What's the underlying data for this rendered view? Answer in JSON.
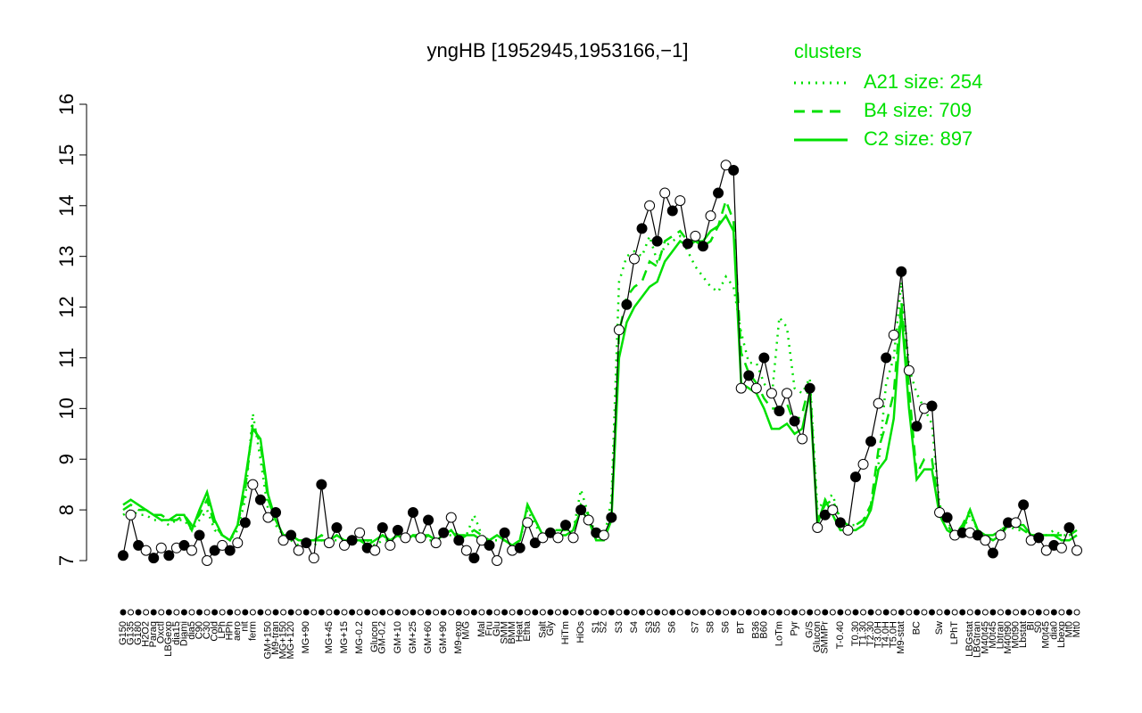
{
  "chart_data": {
    "type": "line",
    "title": "yngHB [1952945,1953166,−1]",
    "legend_title": "clusters",
    "ylim": [
      7,
      16
    ],
    "yticks": [
      7,
      8,
      9,
      10,
      11,
      12,
      13,
      14,
      15,
      16
    ],
    "color": "#000000",
    "categories": [
      "G150",
      "G135",
      "G180",
      "H2O2",
      "Paraq",
      "Oxctl",
      "LBGexp",
      "dia15",
      "Diami",
      "dia5",
      "C90",
      "C30",
      "Cold",
      "LPh",
      "HPh",
      "aero",
      "nit",
      "ferm",
      null,
      "GM+150",
      "M9-tran",
      "MG+150",
      "MG+120",
      null,
      "MG+90",
      null,
      null,
      "MG+45",
      null,
      "MG+15",
      null,
      "MG-0.2",
      null,
      "Glucon",
      "GM-0.2",
      null,
      "GM+10",
      null,
      "GM+25",
      null,
      "GM+60",
      null,
      "GM+90",
      null,
      "M9-exp",
      "M/G",
      null,
      "Mal",
      "Fru",
      "Glu",
      "SMM",
      "BMM",
      "Heat",
      "Etha",
      null,
      "Salt",
      "Gly",
      null,
      "HiTm",
      null,
      "HiOs",
      null,
      "S1",
      "S2",
      null,
      "S3",
      null,
      "S4",
      null,
      "S3",
      "S5",
      null,
      "S6",
      null,
      null,
      "S7",
      null,
      "S8",
      null,
      "S6",
      null,
      "BT",
      null,
      "B36",
      "B60",
      null,
      "LoTm",
      null,
      "Pyr",
      null,
      "G/S",
      "Glucon",
      "SMMPr",
      null,
      "T-0.40",
      null,
      "T0.30",
      "T1.30",
      "T2.30",
      "T3.0H",
      "T4.0H",
      "T5.0H",
      "M9-stat",
      null,
      "BC",
      null,
      null,
      "Sw",
      null,
      "LPhT",
      null,
      "LBGstat",
      "LBGtran",
      "M40t45",
      "M0t45",
      "Lbtran",
      "M40t90",
      "M0t90",
      "Lbstat",
      "BI",
      "S0",
      "M0t45",
      "dia0",
      "Lbexp",
      "Mt0",
      "Mt0"
    ],
    "values": [
      7.1,
      7.9,
      7.3,
      7.2,
      7.05,
      7.25,
      7.1,
      7.25,
      7.3,
      7.2,
      7.5,
      7.0,
      7.2,
      7.3,
      7.2,
      7.35,
      7.75,
      8.5,
      8.2,
      7.85,
      7.95,
      7.4,
      7.5,
      7.2,
      7.35,
      7.05,
      8.5,
      7.35,
      7.65,
      7.3,
      7.4,
      7.55,
      7.25,
      7.2,
      7.65,
      7.3,
      7.6,
      7.45,
      7.95,
      7.45,
      7.8,
      7.35,
      7.55,
      7.85,
      7.4,
      7.2,
      7.05,
      7.4,
      7.3,
      7.0,
      7.55,
      7.2,
      7.25,
      7.75,
      7.35,
      7.45,
      7.55,
      7.45,
      7.7,
      7.45,
      8.0,
      7.8,
      7.55,
      7.5,
      7.85,
      11.55,
      12.05,
      12.95,
      13.55,
      14.0,
      13.3,
      14.25,
      13.9,
      14.1,
      13.25,
      13.4,
      13.2,
      13.8,
      14.25,
      14.8,
      14.7,
      10.4,
      10.65,
      10.4,
      11.0,
      10.3,
      9.95,
      10.3,
      9.75,
      9.4,
      10.4,
      7.65,
      7.9,
      8.0,
      7.75,
      7.6,
      8.65,
      8.9,
      9.35,
      10.1,
      11.0,
      11.45,
      12.7,
      10.75,
      9.65,
      10.0,
      10.05,
      7.95,
      7.85,
      7.5,
      7.55,
      7.55,
      7.5,
      7.4,
      7.15,
      7.5,
      7.75,
      7.75,
      8.1,
      7.4,
      7.45,
      7.2,
      7.3,
      7.25,
      7.65,
      7.2
    ],
    "series": [
      {
        "name": "A21 size: 254",
        "color": "#00e000",
        "style": "dotted",
        "values": [
          7.9,
          8.0,
          7.9,
          7.9,
          7.8,
          7.8,
          7.7,
          7.8,
          7.8,
          7.6,
          7.8,
          8.0,
          7.6,
          7.5,
          7.4,
          7.6,
          8.2,
          9.9,
          9.0,
          8.0,
          7.7,
          7.5,
          7.4,
          7.3,
          7.4,
          7.3,
          7.4,
          7.4,
          7.4,
          7.4,
          7.3,
          7.4,
          7.4,
          7.3,
          7.4,
          7.4,
          7.5,
          7.4,
          7.5,
          7.4,
          7.4,
          7.4,
          7.5,
          7.5,
          7.4,
          7.5,
          7.9,
          7.5,
          7.4,
          7.4,
          7.4,
          7.3,
          7.4,
          8.0,
          7.7,
          7.5,
          7.6,
          7.6,
          7.6,
          7.6,
          8.4,
          7.9,
          7.5,
          7.4,
          8.2,
          12.5,
          13.0,
          13.1,
          13.0,
          13.4,
          12.9,
          13.2,
          13.3,
          13.4,
          13.1,
          12.8,
          12.6,
          12.4,
          12.3,
          12.6,
          12.4,
          11.5,
          10.9,
          10.9,
          10.5,
          10.2,
          11.8,
          11.6,
          10.4,
          10.3,
          10.6,
          8.0,
          8.2,
          8.3,
          7.8,
          7.7,
          7.7,
          7.8,
          8.0,
          8.9,
          10.5,
          11.0,
          12.5,
          10.8,
          10.3,
          10.0,
          9.7,
          8.1,
          7.8,
          7.5,
          7.6,
          7.9,
          7.6,
          7.5,
          7.4,
          7.6,
          7.7,
          7.6,
          7.6,
          7.5,
          7.5,
          7.5,
          7.6,
          7.5,
          7.5,
          7.5
        ]
      },
      {
        "name": "B4 size: 709",
        "color": "#00e000",
        "style": "dashed",
        "values": [
          8.0,
          8.1,
          8.0,
          8.0,
          7.9,
          7.9,
          7.8,
          7.8,
          7.9,
          7.7,
          7.9,
          8.2,
          7.7,
          7.5,
          7.4,
          7.7,
          8.4,
          9.7,
          9.3,
          8.2,
          7.8,
          7.5,
          7.5,
          7.4,
          7.4,
          7.4,
          7.5,
          7.4,
          7.5,
          7.4,
          7.4,
          7.4,
          7.4,
          7.4,
          7.5,
          7.4,
          7.5,
          7.4,
          7.5,
          7.5,
          7.5,
          7.4,
          7.5,
          7.6,
          7.5,
          7.5,
          7.6,
          7.5,
          7.4,
          7.5,
          7.4,
          7.3,
          7.4,
          8.1,
          7.8,
          7.5,
          7.6,
          7.6,
          7.6,
          7.6,
          8.1,
          7.9,
          7.5,
          7.4,
          7.9,
          11.5,
          12.2,
          12.4,
          12.5,
          12.9,
          12.8,
          13.3,
          13.4,
          13.5,
          13.3,
          13.3,
          13.2,
          13.3,
          13.6,
          14.1,
          13.7,
          11.1,
          10.7,
          10.5,
          10.2,
          10.0,
          10.0,
          10.1,
          9.7,
          9.9,
          10.5,
          7.8,
          8.1,
          8.2,
          7.8,
          7.7,
          7.7,
          7.8,
          8.1,
          9.2,
          9.7,
          10.3,
          12.1,
          10.4,
          8.7,
          9.0,
          9.0,
          8.0,
          7.7,
          7.5,
          7.7,
          8.0,
          7.6,
          7.5,
          7.5,
          7.6,
          7.7,
          7.7,
          7.6,
          7.5,
          7.5,
          7.5,
          7.5,
          7.5,
          7.5,
          7.6
        ]
      },
      {
        "name": "C2 size: 897",
        "color": "#00e000",
        "style": "solid",
        "values": [
          8.1,
          8.2,
          8.1,
          8.0,
          7.9,
          7.8,
          7.8,
          7.9,
          7.9,
          7.6,
          8.0,
          8.35,
          7.8,
          7.5,
          7.4,
          7.7,
          8.6,
          9.6,
          9.4,
          8.3,
          7.8,
          7.5,
          7.5,
          7.4,
          7.4,
          7.4,
          7.4,
          7.4,
          7.5,
          7.4,
          7.4,
          7.4,
          7.3,
          7.4,
          7.5,
          7.4,
          7.5,
          7.4,
          7.5,
          7.4,
          7.5,
          7.4,
          7.5,
          7.6,
          7.4,
          7.5,
          7.5,
          7.4,
          7.4,
          7.5,
          7.4,
          7.3,
          7.4,
          8.1,
          7.8,
          7.5,
          7.6,
          7.5,
          7.5,
          7.6,
          8.0,
          7.8,
          7.4,
          7.4,
          7.8,
          11.0,
          11.7,
          12.0,
          12.2,
          12.4,
          12.5,
          12.9,
          13.1,
          13.3,
          13.2,
          13.3,
          13.3,
          13.5,
          13.6,
          13.8,
          13.5,
          10.5,
          10.4,
          10.3,
          10.0,
          9.6,
          9.6,
          9.7,
          9.5,
          9.6,
          10.3,
          7.7,
          8.2,
          7.9,
          7.6,
          7.6,
          7.6,
          7.7,
          8.0,
          8.8,
          9.0,
          9.8,
          11.9,
          10.0,
          8.6,
          8.8,
          8.8,
          7.9,
          7.6,
          7.5,
          7.6,
          8.0,
          7.6,
          7.5,
          7.4,
          7.5,
          7.7,
          7.7,
          7.7,
          7.5,
          7.5,
          7.5,
          7.5,
          7.4,
          7.4,
          7.5
        ]
      }
    ]
  }
}
